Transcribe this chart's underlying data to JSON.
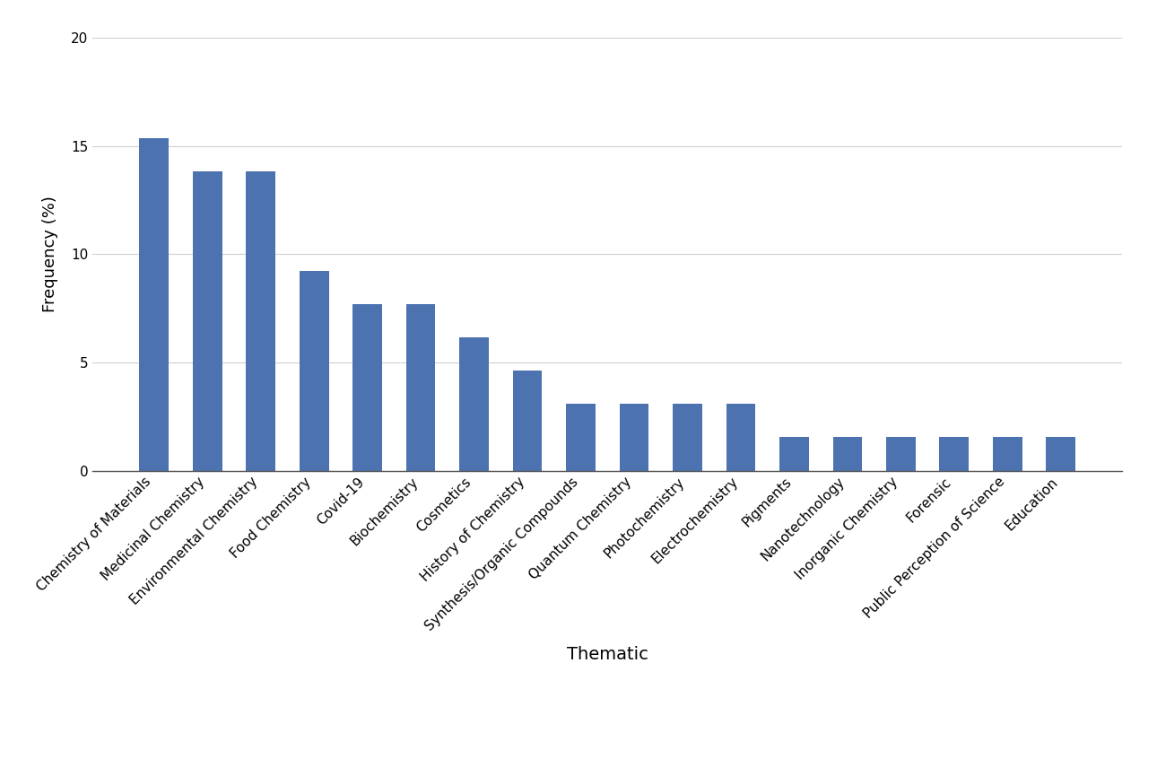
{
  "categories": [
    "Chemistry of Materials",
    "Medicinal Chemistry",
    "Environmental Chemistry",
    "Food Chemistry",
    "Covid-19",
    "Biochemistry",
    "Cosmetics",
    "History of Chemistry",
    "Synthesis/Organic Compounds",
    "Quantum Chemistry",
    "Photochemistry",
    "Electrochemistry",
    "Pigments",
    "Nanotechnology",
    "Inorganic Chemistry",
    "Forensic",
    "Public Perception of Science",
    "Education"
  ],
  "values": [
    15.38,
    13.85,
    13.85,
    9.23,
    7.69,
    7.69,
    6.15,
    4.62,
    3.08,
    3.08,
    3.08,
    3.08,
    1.54,
    1.54,
    1.54,
    1.54,
    1.54,
    1.54
  ],
  "bar_color": "#4d72b0",
  "xlabel": "Thematic",
  "ylabel": "Frequency (%)",
  "ylim": [
    0,
    20
  ],
  "yticks": [
    0,
    5,
    10,
    15,
    20
  ],
  "background_color": "#ffffff",
  "grid_color": "#d0d0d0",
  "xlabel_fontsize": 14,
  "ylabel_fontsize": 13,
  "tick_fontsize": 11,
  "bar_width": 0.55
}
